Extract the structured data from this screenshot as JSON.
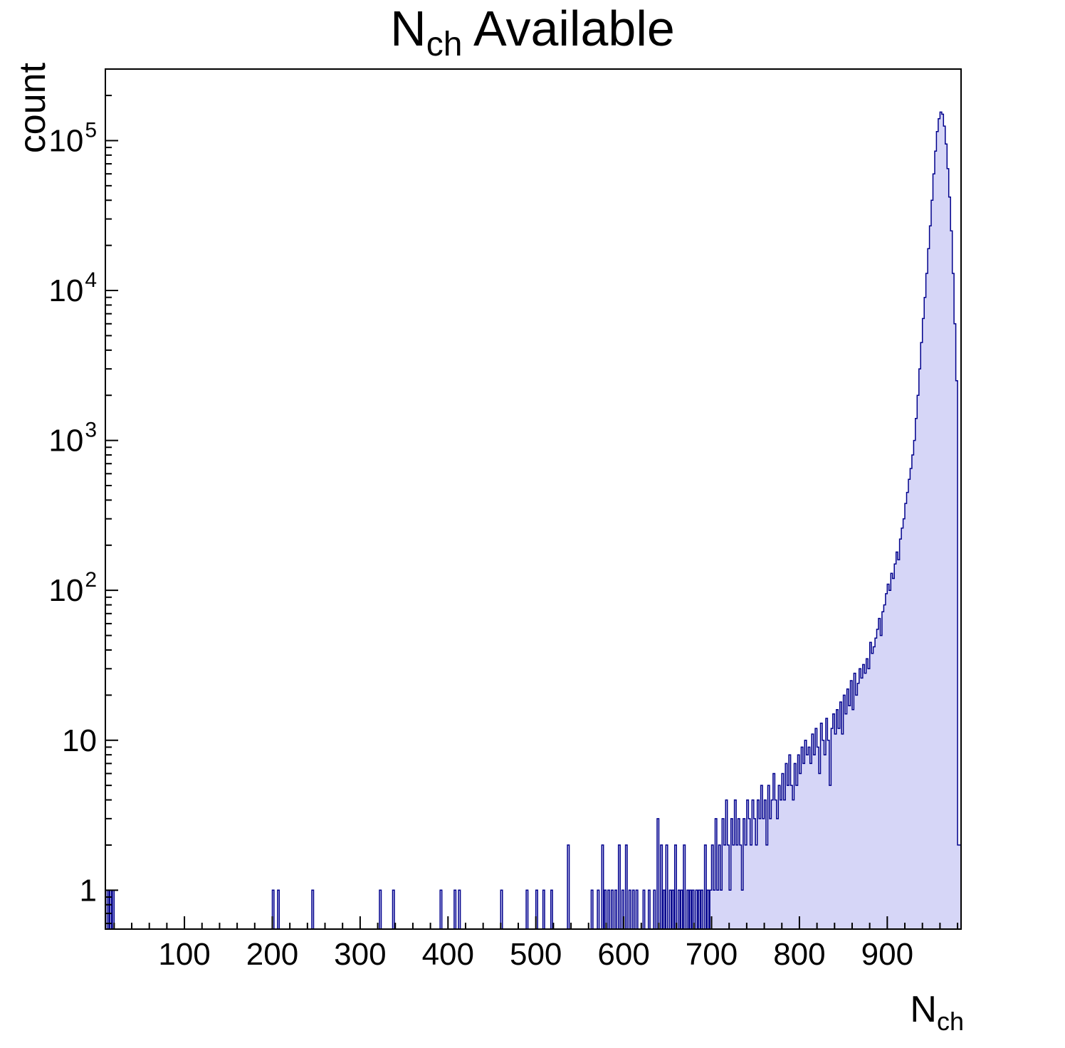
{
  "chart_data": {
    "type": "bar",
    "title": {
      "main": "N",
      "sub": "ch",
      "rest": " Available"
    },
    "xlabel": {
      "main": "N",
      "sub": "ch"
    },
    "ylabel": "count",
    "y_scale": "log",
    "grid": false,
    "legend": "none",
    "xlim": [
      10,
      984
    ],
    "ylim": [
      0.55,
      300000
    ],
    "x_ticks": [
      100,
      200,
      300,
      400,
      500,
      600,
      700,
      800,
      900
    ],
    "x_minor_step": 20,
    "y_ticks": [
      {
        "value": 1,
        "base": "1",
        "exp": ""
      },
      {
        "value": 10,
        "base": "10",
        "exp": ""
      },
      {
        "value": 100,
        "base": "10",
        "exp": "2"
      },
      {
        "value": 1000,
        "base": "10",
        "exp": "3"
      },
      {
        "value": 10000,
        "base": "10",
        "exp": "4"
      },
      {
        "value": 100000,
        "base": "10",
        "exp": "5"
      }
    ],
    "bin_width": 2,
    "peak": {
      "x": 960,
      "count": 155000
    },
    "colors": {
      "fill": "#d6d6f7",
      "line": "#00008c",
      "axis": "#000000",
      "text": "#000000"
    },
    "bins": [
      [
        12,
        1
      ],
      [
        15,
        1
      ],
      [
        18,
        1
      ],
      [
        200,
        1
      ],
      [
        206,
        1
      ],
      [
        245,
        1
      ],
      [
        322,
        1
      ],
      [
        337,
        1
      ],
      [
        391,
        1
      ],
      [
        407,
        1
      ],
      [
        412,
        1
      ],
      [
        460,
        1
      ],
      [
        489,
        1
      ],
      [
        500,
        1
      ],
      [
        508,
        1
      ],
      [
        517,
        1
      ],
      [
        536,
        2
      ],
      [
        563,
        1
      ],
      [
        570,
        1
      ],
      [
        575,
        2
      ],
      [
        578,
        1
      ],
      [
        582,
        1
      ],
      [
        586,
        1
      ],
      [
        590,
        1
      ],
      [
        594,
        2
      ],
      [
        598,
        1
      ],
      [
        602,
        2
      ],
      [
        606,
        1
      ],
      [
        610,
        1
      ],
      [
        614,
        1
      ],
      [
        622,
        1
      ],
      [
        628,
        1
      ],
      [
        634,
        1
      ],
      [
        638,
        3
      ],
      [
        642,
        2
      ],
      [
        645,
        1
      ],
      [
        648,
        2
      ],
      [
        652,
        1
      ],
      [
        655,
        1
      ],
      [
        658,
        2
      ],
      [
        662,
        1
      ],
      [
        665,
        1
      ],
      [
        668,
        2
      ],
      [
        672,
        1
      ],
      [
        675,
        1
      ],
      [
        678,
        1
      ],
      [
        682,
        1
      ],
      [
        685,
        1
      ],
      [
        688,
        1
      ],
      [
        692,
        2
      ],
      [
        695,
        1
      ],
      [
        698,
        1
      ],
      [
        700,
        2
      ],
      [
        702,
        1
      ],
      [
        704,
        3
      ],
      [
        706,
        1
      ],
      [
        708,
        2
      ],
      [
        710,
        1
      ],
      [
        712,
        3
      ],
      [
        714,
        2
      ],
      [
        716,
        4
      ],
      [
        718,
        2
      ],
      [
        720,
        1
      ],
      [
        722,
        3
      ],
      [
        724,
        2
      ],
      [
        726,
        4
      ],
      [
        728,
        2
      ],
      [
        730,
        3
      ],
      [
        732,
        2
      ],
      [
        734,
        1
      ],
      [
        736,
        3
      ],
      [
        738,
        2
      ],
      [
        740,
        4
      ],
      [
        742,
        3
      ],
      [
        744,
        2
      ],
      [
        746,
        4
      ],
      [
        748,
        3
      ],
      [
        750,
        2
      ],
      [
        752,
        4
      ],
      [
        754,
        3
      ],
      [
        756,
        5
      ],
      [
        758,
        3
      ],
      [
        760,
        4
      ],
      [
        762,
        2
      ],
      [
        764,
        5
      ],
      [
        766,
        3
      ],
      [
        768,
        4
      ],
      [
        770,
        6
      ],
      [
        772,
        4
      ],
      [
        774,
        3
      ],
      [
        776,
        5
      ],
      [
        778,
        4
      ],
      [
        780,
        6
      ],
      [
        782,
        4
      ],
      [
        784,
        7
      ],
      [
        786,
        5
      ],
      [
        788,
        8
      ],
      [
        790,
        5
      ],
      [
        792,
        4
      ],
      [
        794,
        7
      ],
      [
        796,
        5
      ],
      [
        798,
        8
      ],
      [
        800,
        6
      ],
      [
        802,
        9
      ],
      [
        804,
        7
      ],
      [
        806,
        10
      ],
      [
        808,
        8
      ],
      [
        810,
        9
      ],
      [
        812,
        7
      ],
      [
        814,
        11
      ],
      [
        816,
        8
      ],
      [
        818,
        12
      ],
      [
        820,
        9
      ],
      [
        822,
        6
      ],
      [
        824,
        13
      ],
      [
        826,
        10
      ],
      [
        828,
        8
      ],
      [
        830,
        14
      ],
      [
        832,
        10
      ],
      [
        834,
        5
      ],
      [
        836,
        12
      ],
      [
        838,
        15
      ],
      [
        840,
        11
      ],
      [
        842,
        16
      ],
      [
        844,
        12
      ],
      [
        846,
        18
      ],
      [
        848,
        11
      ],
      [
        850,
        20
      ],
      [
        852,
        15
      ],
      [
        854,
        22
      ],
      [
        856,
        17
      ],
      [
        858,
        25
      ],
      [
        860,
        16
      ],
      [
        862,
        28
      ],
      [
        864,
        20
      ],
      [
        866,
        24
      ],
      [
        868,
        30
      ],
      [
        870,
        26
      ],
      [
        872,
        32
      ],
      [
        874,
        28
      ],
      [
        876,
        35
      ],
      [
        878,
        30
      ],
      [
        880,
        45
      ],
      [
        882,
        38
      ],
      [
        884,
        42
      ],
      [
        886,
        48
      ],
      [
        888,
        55
      ],
      [
        890,
        65
      ],
      [
        892,
        50
      ],
      [
        894,
        72
      ],
      [
        896,
        80
      ],
      [
        898,
        95
      ],
      [
        900,
        110
      ],
      [
        902,
        100
      ],
      [
        904,
        130
      ],
      [
        906,
        120
      ],
      [
        908,
        150
      ],
      [
        910,
        180
      ],
      [
        912,
        160
      ],
      [
        914,
        220
      ],
      [
        916,
        260
      ],
      [
        918,
        300
      ],
      [
        920,
        380
      ],
      [
        922,
        450
      ],
      [
        924,
        550
      ],
      [
        926,
        650
      ],
      [
        928,
        800
      ],
      [
        930,
        1000
      ],
      [
        932,
        1400
      ],
      [
        934,
        2000
      ],
      [
        936,
        3000
      ],
      [
        938,
        4500
      ],
      [
        940,
        6500
      ],
      [
        942,
        9000
      ],
      [
        944,
        13000
      ],
      [
        946,
        19000
      ],
      [
        948,
        27000
      ],
      [
        950,
        40000
      ],
      [
        952,
        60000
      ],
      [
        954,
        85000
      ],
      [
        956,
        115000
      ],
      [
        958,
        140000
      ],
      [
        960,
        155000
      ],
      [
        962,
        150000
      ],
      [
        964,
        125000
      ],
      [
        966,
        95000
      ],
      [
        968,
        65000
      ],
      [
        970,
        42000
      ],
      [
        972,
        25000
      ],
      [
        974,
        13000
      ],
      [
        976,
        6000
      ],
      [
        978,
        2500
      ],
      [
        980,
        2
      ],
      [
        982,
        2
      ]
    ]
  }
}
